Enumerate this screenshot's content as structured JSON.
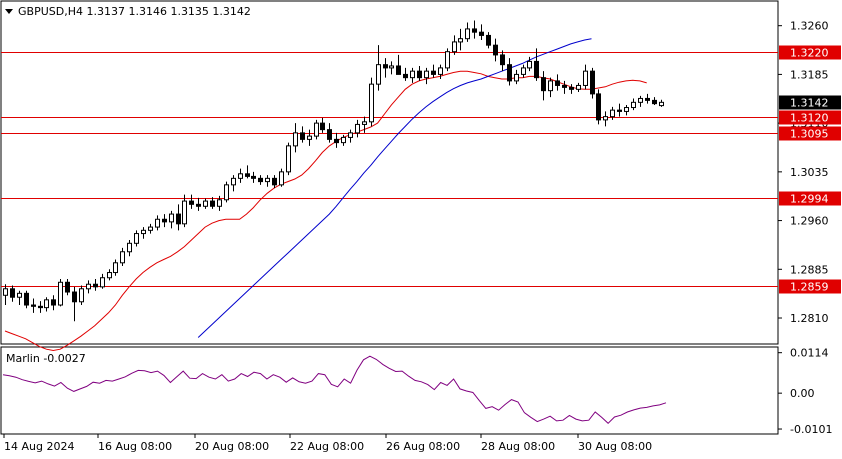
{
  "chart_data": [
    {
      "type": "candlestick",
      "title": "GBPUSD,H4  1.3137 1.3146 1.3135 1.3142",
      "symbol": "GBPUSD",
      "timeframe": "H4",
      "last_bar": {
        "open": 1.3137,
        "high": 1.3146,
        "low": 1.3135,
        "close": 1.3142
      },
      "current_price_label": "1.3142",
      "ylim": [
        1.277,
        1.3298
      ],
      "y_ticks": [
        "1.3260",
        "1.3185",
        "1.3110",
        "1.3035",
        "1.2960",
        "1.2885",
        "1.2810"
      ],
      "x_tick_labels": [
        "14 Aug 2024",
        "16 Aug 08:00",
        "20 Aug 08:00",
        "22 Aug 08:00",
        "26 Aug 08:00",
        "28 Aug 08:00",
        "30 Aug 08:00"
      ],
      "horizontal_levels": [
        {
          "value": 1.322,
          "label": "1.3220"
        },
        {
          "value": 1.312,
          "label": "1.3120"
        },
        {
          "value": 1.3095,
          "label": "1.3095"
        },
        {
          "value": 1.2994,
          "label": "1.2994"
        },
        {
          "value": 1.2859,
          "label": "1.2859"
        }
      ],
      "candles_ohlc": [
        [
          1.2845,
          1.2862,
          1.283,
          1.2855
        ],
        [
          1.2855,
          1.286,
          1.2835,
          1.2842
        ],
        [
          1.2842,
          1.2852,
          1.283,
          1.2848
        ],
        [
          1.2848,
          1.2852,
          1.2825,
          1.283
        ],
        [
          1.283,
          1.284,
          1.2818,
          1.2828
        ],
        [
          1.2828,
          1.2836,
          1.2818,
          1.2826
        ],
        [
          1.2826,
          1.2842,
          1.282,
          1.2838
        ],
        [
          1.2838,
          1.2845,
          1.2822,
          1.283
        ],
        [
          1.283,
          1.287,
          1.2828,
          1.2865
        ],
        [
          1.2865,
          1.287,
          1.2845,
          1.285
        ],
        [
          1.285,
          1.2858,
          1.2805,
          1.2835
        ],
        [
          1.2835,
          1.286,
          1.283,
          1.2855
        ],
        [
          1.2855,
          1.2868,
          1.2848,
          1.2862
        ],
        [
          1.2862,
          1.287,
          1.2852,
          1.2858
        ],
        [
          1.2858,
          1.2878,
          1.2855,
          1.2872
        ],
        [
          1.2872,
          1.2885,
          1.2868,
          1.288
        ],
        [
          1.288,
          1.29,
          1.2875,
          1.2895
        ],
        [
          1.2895,
          1.2918,
          1.289,
          1.2912
        ],
        [
          1.2912,
          1.293,
          1.2905,
          1.2925
        ],
        [
          1.2925,
          1.2945,
          1.292,
          1.294
        ],
        [
          1.294,
          1.295,
          1.2932,
          1.2945
        ],
        [
          1.2945,
          1.2955,
          1.294,
          1.295
        ],
        [
          1.295,
          1.2968,
          1.2945,
          1.2962
        ],
        [
          1.2962,
          1.297,
          1.295,
          1.2958
        ],
        [
          1.2958,
          1.2975,
          1.2948,
          1.297
        ],
        [
          1.297,
          1.2985,
          1.2945,
          1.2955
        ],
        [
          1.2955,
          1.3,
          1.295,
          1.299
        ],
        [
          1.299,
          1.3,
          1.2978,
          1.2985
        ],
        [
          1.2985,
          1.2995,
          1.2975,
          1.2982
        ],
        [
          1.2982,
          1.2994,
          1.2978,
          1.299
        ],
        [
          1.299,
          1.2996,
          1.2978,
          1.2982
        ],
        [
          1.2982,
          1.2998,
          1.2975,
          1.2992
        ],
        [
          1.2992,
          1.302,
          1.2988,
          1.3015
        ],
        [
          1.3015,
          1.303,
          1.3005,
          1.3025
        ],
        [
          1.3025,
          1.304,
          1.3018,
          1.3032
        ],
        [
          1.3032,
          1.3045,
          1.3025,
          1.3028
        ],
        [
          1.3028,
          1.3035,
          1.3018,
          1.3025
        ],
        [
          1.3025,
          1.303,
          1.3015,
          1.302
        ],
        [
          1.302,
          1.303,
          1.3012,
          1.3025
        ],
        [
          1.3025,
          1.303,
          1.301,
          1.3015
        ],
        [
          1.3015,
          1.304,
          1.3012,
          1.3035
        ],
        [
          1.3035,
          1.308,
          1.303,
          1.3075
        ],
        [
          1.3075,
          1.311,
          1.3065,
          1.3095
        ],
        [
          1.3095,
          1.3105,
          1.308,
          1.3085
        ],
        [
          1.3085,
          1.31,
          1.3075,
          1.309
        ],
        [
          1.309,
          1.3115,
          1.3085,
          1.311
        ],
        [
          1.311,
          1.3118,
          1.3095,
          1.31
        ],
        [
          1.31,
          1.311,
          1.308,
          1.3085
        ],
        [
          1.3085,
          1.3095,
          1.3072,
          1.308
        ],
        [
          1.308,
          1.3092,
          1.3075,
          1.3088
        ],
        [
          1.3088,
          1.31,
          1.308,
          1.3095
        ],
        [
          1.3095,
          1.3115,
          1.3088,
          1.3108
        ],
        [
          1.3108,
          1.312,
          1.3095,
          1.3112
        ],
        [
          1.3112,
          1.318,
          1.3105,
          1.317
        ],
        [
          1.317,
          1.323,
          1.316,
          1.32
        ],
        [
          1.32,
          1.321,
          1.318,
          1.3195
        ],
        [
          1.3195,
          1.3205,
          1.3185,
          1.3198
        ],
        [
          1.3198,
          1.3215,
          1.319,
          1.3185
        ],
        [
          1.3185,
          1.3195,
          1.3175,
          1.318
        ],
        [
          1.318,
          1.3195,
          1.3172,
          1.319
        ],
        [
          1.319,
          1.3198,
          1.3175,
          1.318
        ],
        [
          1.318,
          1.3195,
          1.317,
          1.319
        ],
        [
          1.319,
          1.32,
          1.318,
          1.3185
        ],
        [
          1.3185,
          1.32,
          1.3178,
          1.3195
        ],
        [
          1.3195,
          1.3225,
          1.319,
          1.322
        ],
        [
          1.322,
          1.3245,
          1.3215,
          1.3235
        ],
        [
          1.3235,
          1.3255,
          1.3222,
          1.324
        ],
        [
          1.324,
          1.3265,
          1.3235,
          1.3255
        ],
        [
          1.3255,
          1.3268,
          1.324,
          1.325
        ],
        [
          1.325,
          1.3262,
          1.3238,
          1.3245
        ],
        [
          1.3245,
          1.325,
          1.3225,
          1.323
        ],
        [
          1.323,
          1.324,
          1.3205,
          1.3215
        ],
        [
          1.3215,
          1.3222,
          1.319,
          1.32
        ],
        [
          1.32,
          1.321,
          1.3168,
          1.3175
        ],
        [
          1.3175,
          1.3192,
          1.317,
          1.3185
        ],
        [
          1.3185,
          1.32,
          1.318,
          1.3195
        ],
        [
          1.3195,
          1.3212,
          1.319,
          1.3205
        ],
        [
          1.3205,
          1.3225,
          1.3175,
          1.318
        ],
        [
          1.318,
          1.319,
          1.3145,
          1.316
        ],
        [
          1.316,
          1.318,
          1.315,
          1.3175
        ],
        [
          1.3175,
          1.3185,
          1.316,
          1.3168
        ],
        [
          1.3168,
          1.3175,
          1.3155,
          1.3165
        ],
        [
          1.3165,
          1.317,
          1.3155,
          1.3162
        ],
        [
          1.3162,
          1.3172,
          1.3158,
          1.3168
        ],
        [
          1.3168,
          1.32,
          1.3162,
          1.319
        ],
        [
          1.319,
          1.3195,
          1.3148,
          1.3155
        ],
        [
          1.3155,
          1.3162,
          1.3108,
          1.3115
        ],
        [
          1.3115,
          1.3128,
          1.3105,
          1.312
        ],
        [
          1.312,
          1.3135,
          1.3115,
          1.313
        ],
        [
          1.313,
          1.314,
          1.312,
          1.3128
        ],
        [
          1.3128,
          1.3138,
          1.3122,
          1.3134
        ],
        [
          1.3134,
          1.3148,
          1.313,
          1.3142
        ],
        [
          1.3142,
          1.3152,
          1.3135,
          1.3148
        ],
        [
          1.3148,
          1.3155,
          1.314,
          1.3145
        ],
        [
          1.3145,
          1.315,
          1.3138,
          1.314
        ],
        [
          1.3137,
          1.3146,
          1.3135,
          1.3142
        ]
      ],
      "series": [
        {
          "name": "",
          "color": "#e00000",
          "values": [
            1.279,
            1.2786,
            1.2782,
            1.2778,
            1.2772,
            1.2766,
            1.2762,
            1.276,
            1.2762,
            1.2768,
            1.2775,
            1.2782,
            1.279,
            1.2798,
            1.2808,
            1.2818,
            1.283,
            1.2845,
            1.2858,
            1.287,
            1.288,
            1.2888,
            1.2895,
            1.29,
            1.2905,
            1.2912,
            1.292,
            1.293,
            1.294,
            1.295,
            1.2956,
            1.296,
            1.2962,
            1.2962,
            1.2962,
            1.297,
            1.298,
            1.2992,
            1.3002,
            1.301,
            1.3016,
            1.302,
            1.3024,
            1.303,
            1.304,
            1.3052,
            1.3065,
            1.3075,
            1.3082,
            1.3088,
            1.3092,
            1.3096,
            1.31,
            1.3104,
            1.311,
            1.3124,
            1.3138,
            1.315,
            1.3162,
            1.317,
            1.3175,
            1.3178,
            1.318,
            1.3182,
            1.3185,
            1.3188,
            1.319,
            1.319,
            1.3188,
            1.3186,
            1.3182,
            1.318,
            1.3178,
            1.3178,
            1.318,
            1.318,
            1.3182,
            1.3182,
            1.318,
            1.3178,
            1.3174,
            1.317,
            1.3166,
            1.3163,
            1.3162,
            1.3162,
            1.3164,
            1.3166,
            1.317,
            1.3173,
            1.3175,
            1.3176,
            1.3175,
            1.3172
          ]
        },
        {
          "name": "",
          "color": "#0000cc",
          "values": [
            null,
            null,
            null,
            null,
            null,
            null,
            null,
            null,
            null,
            null,
            null,
            null,
            null,
            null,
            null,
            null,
            null,
            null,
            null,
            null,
            null,
            null,
            null,
            null,
            null,
            null,
            null,
            null,
            1.278,
            1.279,
            1.28,
            1.281,
            1.282,
            1.283,
            1.284,
            1.285,
            1.286,
            1.287,
            1.288,
            1.289,
            1.29,
            1.291,
            1.292,
            1.293,
            1.294,
            1.295,
            1.296,
            1.297,
            1.2982,
            1.2995,
            1.3008,
            1.302,
            1.3033,
            1.3045,
            1.3058,
            1.307,
            1.3082,
            1.3094,
            1.3105,
            1.3116,
            1.3126,
            1.3135,
            1.3143,
            1.315,
            1.3157,
            1.3163,
            1.3168,
            1.3172,
            1.3175,
            1.3178,
            1.3182,
            1.3186,
            1.319,
            1.3194,
            1.3198,
            1.3202,
            1.3207,
            1.3212,
            1.3216,
            1.322,
            1.3224,
            1.3228,
            1.3232,
            1.3235,
            1.3238,
            1.324
          ]
        }
      ]
    },
    {
      "type": "line",
      "title": "Marlin -0.0027",
      "indicator_name": "Marlin",
      "indicator_value": "-0.0027",
      "ylim": [
        -0.0115,
        0.013
      ],
      "y_ticks": [
        "0.0114",
        "0.00",
        "-0.0101"
      ],
      "series": [
        {
          "name": "Marlin",
          "color": "#800080",
          "values": [
            0.0052,
            0.0049,
            0.0045,
            0.0038,
            0.0033,
            0.0029,
            0.0034,
            0.0026,
            0.002,
            0.003,
            0.0014,
            0.0005,
            0.0012,
            0.0019,
            0.0031,
            0.0028,
            0.0036,
            0.0034,
            0.004,
            0.0046,
            0.0056,
            0.0064,
            0.0063,
            0.0058,
            0.0062,
            0.005,
            0.003,
            0.0046,
            0.0062,
            0.0042,
            0.0041,
            0.0055,
            0.0045,
            0.004,
            0.0052,
            0.0034,
            0.004,
            0.0055,
            0.0047,
            0.0059,
            0.0055,
            0.004,
            0.0052,
            0.0045,
            0.0031,
            0.0043,
            0.0032,
            0.0028,
            0.0034,
            0.0055,
            0.0052,
            0.0025,
            0.0018,
            0.004,
            0.0028,
            0.0065,
            0.0094,
            0.0104,
            0.0095,
            0.0081,
            0.007,
            0.0061,
            0.0062,
            0.0048,
            0.0036,
            0.0032,
            0.0024,
            0.001,
            0.003,
            0.0022,
            0.004,
            0.0012,
            0.0006,
            0.0002,
            -0.0021,
            -0.0043,
            -0.0038,
            -0.0048,
            -0.0032,
            -0.0018,
            -0.0025,
            -0.0055,
            -0.0068,
            -0.008,
            -0.0073,
            -0.0065,
            -0.0078,
            -0.0076,
            -0.0063,
            -0.0073,
            -0.0078,
            -0.0076,
            -0.0053,
            -0.0068,
            -0.0085,
            -0.0067,
            -0.0062,
            -0.0053,
            -0.0047,
            -0.0042,
            -0.004,
            -0.0036,
            -0.0033,
            -0.0027
          ]
        }
      ]
    }
  ]
}
